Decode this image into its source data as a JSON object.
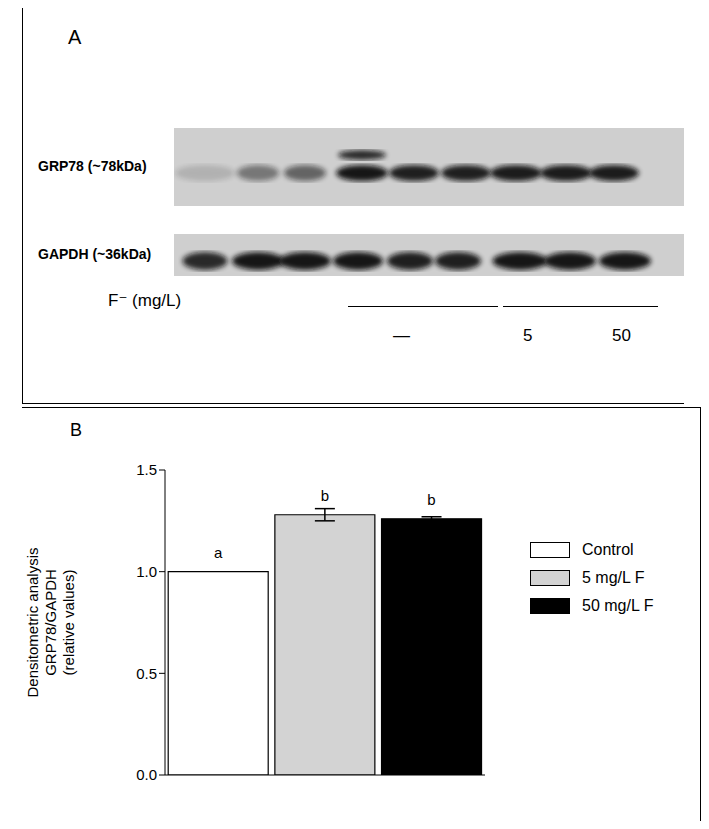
{
  "panel_a": {
    "label": "A",
    "blot_rows": [
      "GRP78 (~78kDa)",
      "GAPDH (~36kDa)"
    ],
    "treatment_label": "F⁻ (mg/L)",
    "groups": [
      "—",
      "5",
      "50"
    ]
  },
  "chart_data": {
    "type": "bar",
    "title": "B",
    "ylabel": [
      "Densitometric analysis",
      "GRP78/GAPDH",
      "(relative values)"
    ],
    "categories": [
      "Control",
      "5 mg/L F",
      "50 mg/L F"
    ],
    "values": [
      1.0,
      1.28,
      1.26
    ],
    "error": [
      0,
      0.03,
      0.01
    ],
    "annotations": [
      "a",
      "b",
      "b"
    ],
    "colors": [
      "#ffffff",
      "#d3d3d3",
      "#000000"
    ],
    "ylim": [
      0,
      1.5
    ],
    "yticks": [
      {
        "value": 0,
        "label": "0.0"
      },
      {
        "value": 0.5,
        "label": "0.5"
      },
      {
        "value": 1,
        "label": "1.0"
      },
      {
        "value": 1.5,
        "label": "1.5"
      }
    ],
    "legend": "right",
    "tick_labels": "y"
  }
}
